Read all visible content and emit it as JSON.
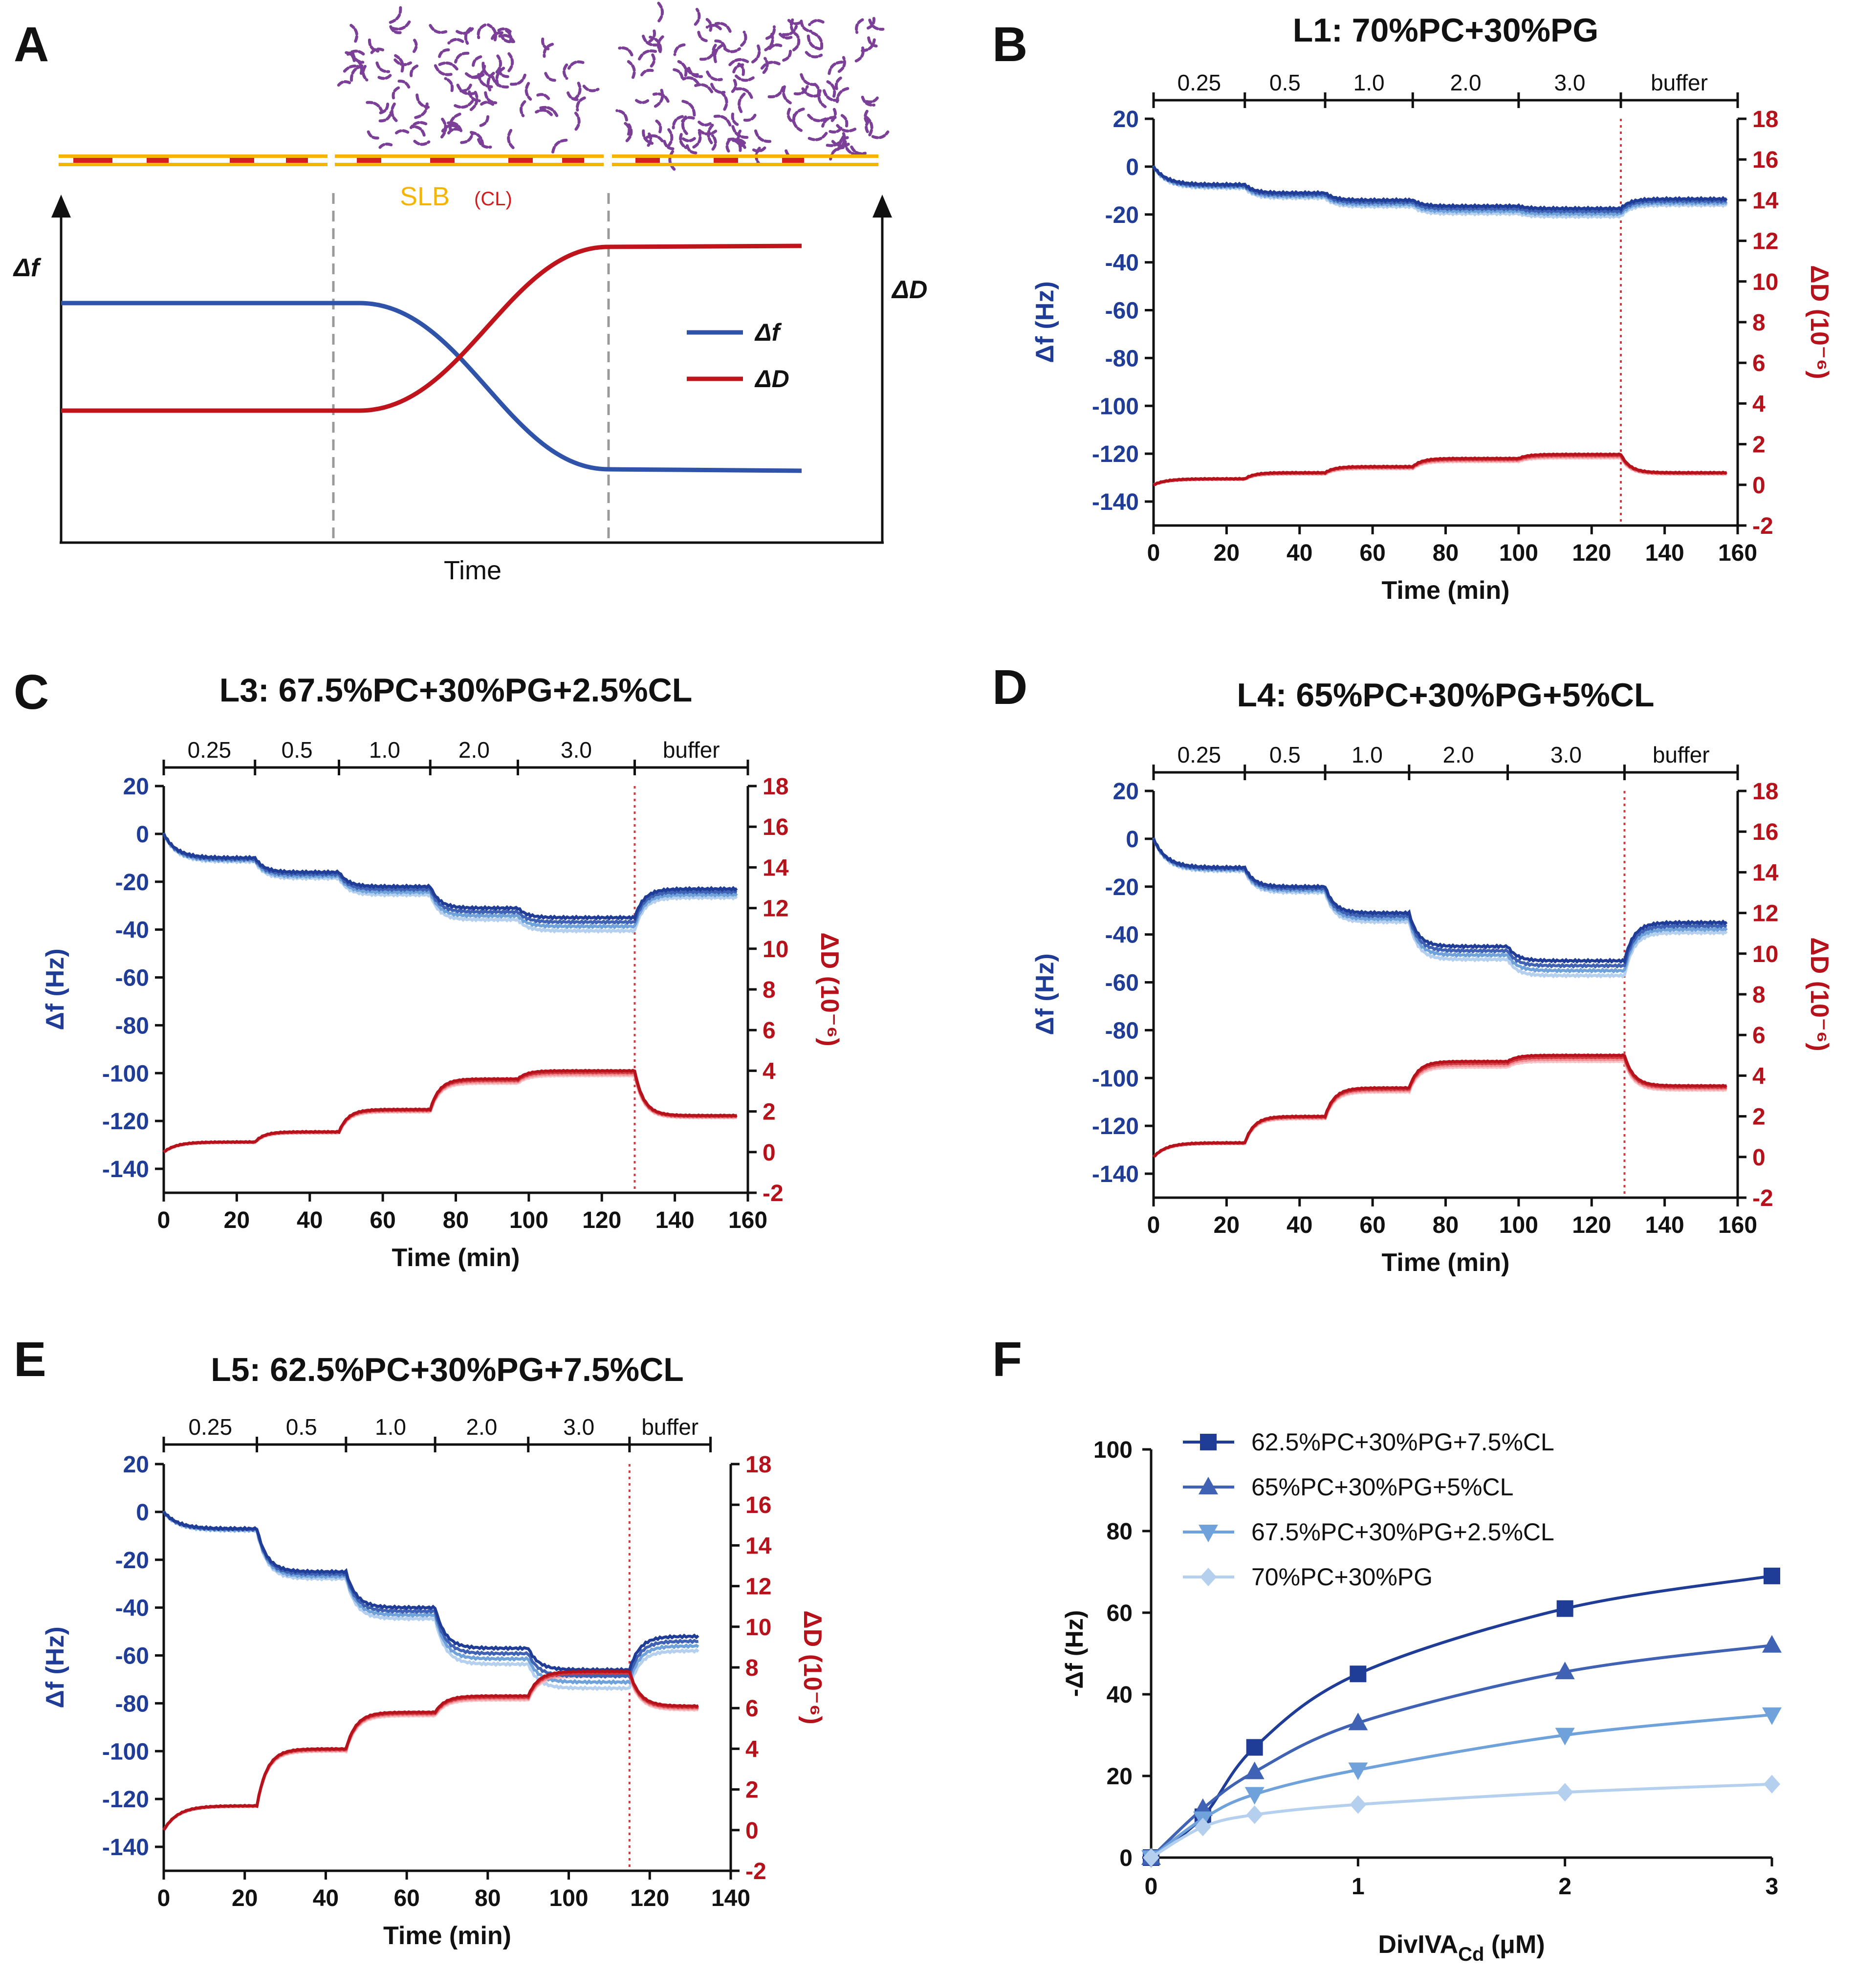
{
  "colors": {
    "blue_dark": "#1f3c96",
    "blue_mid": "#3f62b4",
    "blue_light": "#6fa1da",
    "blue_pale": "#b4d0ee",
    "red_dark": "#b5121b",
    "red_mid": "#d23a42",
    "red_light": "#ef8d93",
    "red_pale": "#f7c3c6",
    "purple": "#7b3f98",
    "gold": "#f5b400",
    "grid_dash": "#9a9a9a",
    "axis": "#111111"
  },
  "panel_labels": [
    "A",
    "B",
    "C",
    "D",
    "E",
    "F"
  ],
  "schematic": {
    "slb_label": "SLB",
    "cl_label": "(CL)",
    "time_label": "Time",
    "df_axis": "Δf",
    "dD_axis": "ΔD",
    "legend": [
      "Δf",
      "ΔD"
    ]
  },
  "qcmd_common": {
    "xlabel": "Time (min)",
    "ylabel_left": "Δf (Hz)",
    "ylabel_right": "ΔD (10⁻⁶)",
    "left_ticks": [
      20,
      0,
      -20,
      -40,
      -60,
      -80,
      -100,
      -120,
      -140
    ],
    "right_ticks": [
      18,
      16,
      14,
      12,
      10,
      8,
      6,
      4,
      2,
      0,
      -2
    ]
  },
  "chart_data": [
    {
      "panel": "B",
      "type": "line",
      "title": "L1: 70%PC+30%PG",
      "xlim": [
        0,
        160
      ],
      "xticks": [
        0,
        20,
        40,
        60,
        80,
        100,
        120,
        140,
        160
      ],
      "ylim_left": [
        -150,
        20
      ],
      "ylim_right": [
        -2,
        18
      ],
      "injection_times": [
        0,
        25,
        47,
        71,
        100,
        128,
        160
      ],
      "injection_labels": [
        "0.25",
        "0.5",
        "1.0",
        "2.0",
        "3.0",
        "buffer"
      ],
      "buffer_time": 128,
      "df_levels": [
        -7.5,
        -11,
        -14,
        -16.5,
        -17.5,
        -13.5
      ],
      "dD_levels": [
        0.3,
        0.6,
        0.9,
        1.3,
        1.5,
        0.6
      ],
      "series_spread_df": 1.5,
      "series_spread_dD": 0.3
    },
    {
      "panel": "C",
      "type": "line",
      "title": "L3: 67.5%PC+30%PG+2.5%CL",
      "xlim": [
        0,
        160
      ],
      "xticks": [
        0,
        20,
        40,
        60,
        80,
        100,
        120,
        140,
        160
      ],
      "ylim_left": [
        -150,
        20
      ],
      "ylim_right": [
        -2,
        18
      ],
      "injection_times": [
        0,
        25,
        48,
        73,
        97,
        129,
        160
      ],
      "injection_labels": [
        "0.25",
        "0.5",
        "1.0",
        "2.0",
        "3.0",
        "buffer"
      ],
      "buffer_time": 129,
      "df_levels": [
        -10,
        -16,
        -22,
        -31,
        -35,
        -23
      ],
      "dD_levels": [
        0.5,
        1.0,
        2.1,
        3.6,
        4.0,
        1.8
      ],
      "series_spread_df": 2.5,
      "series_spread_dD": 0.4
    },
    {
      "panel": "D",
      "type": "line",
      "title": "L4: 65%PC+30%PG+5%CL",
      "xlim": [
        0,
        160
      ],
      "xticks": [
        0,
        20,
        40,
        60,
        80,
        100,
        120,
        140,
        160
      ],
      "ylim_left": [
        -150,
        20
      ],
      "ylim_right": [
        -2,
        18
      ],
      "injection_times": [
        0,
        25,
        47,
        70,
        97,
        129,
        160
      ],
      "injection_labels": [
        "0.25",
        "0.5",
        "1.0",
        "2.0",
        "3.0",
        "buffer"
      ],
      "buffer_time": 129,
      "df_levels": [
        -12,
        -20,
        -31,
        -45,
        -51,
        -35
      ],
      "dD_levels": [
        0.7,
        2.0,
        3.4,
        4.7,
        5.0,
        3.5
      ],
      "series_spread_df": 2.8,
      "series_spread_dD": 0.5
    },
    {
      "panel": "E",
      "type": "line",
      "title": "L5: 62.5%PC+30%PG+7.5%CL",
      "xlim": [
        0,
        140
      ],
      "xticks": [
        0,
        20,
        40,
        60,
        80,
        100,
        120,
        140
      ],
      "ylim_left": [
        -150,
        20
      ],
      "ylim_right": [
        -2,
        18
      ],
      "injection_times": [
        0,
        23,
        45,
        67,
        90,
        115,
        135
      ],
      "injection_labels": [
        "0.25",
        "0.5",
        "1.0",
        "2.0",
        "3.0",
        "buffer"
      ],
      "buffer_time": 115,
      "df_levels": [
        -7,
        -25,
        -40,
        -57,
        -66,
        -52
      ],
      "dD_levels": [
        1.2,
        4.0,
        5.8,
        6.6,
        7.8,
        6.1
      ],
      "series_spread_df": 3.5,
      "series_spread_dD": 0.4
    },
    {
      "panel": "F",
      "type": "scatter",
      "xlabel_main": "DivIVA",
      "xlabel_sub": "Cd",
      "xlabel_unit": " (μM)",
      "ylabel": "-Δf (Hz)",
      "xlim": [
        0,
        3
      ],
      "ylim": [
        0,
        100
      ],
      "xticks": [
        0,
        1,
        2,
        3
      ],
      "yticks": [
        0,
        20,
        40,
        60,
        80,
        100
      ],
      "series": [
        {
          "name": "62.5%PC+30%PG+7.5%CL",
          "marker": "square",
          "x": [
            0,
            0.25,
            0.5,
            1,
            2,
            3
          ],
          "y": [
            0,
            10,
            27,
            45,
            61,
            69
          ]
        },
        {
          "name": "65%PC+30%PG+5%CL",
          "marker": "triangle-up",
          "x": [
            0,
            0.25,
            0.5,
            1,
            2,
            3
          ],
          "y": [
            0,
            12,
            21,
            33,
            45.5,
            52
          ]
        },
        {
          "name": "67.5%PC+30%PG+2.5%CL",
          "marker": "triangle-down",
          "x": [
            0,
            0.25,
            0.5,
            1,
            2,
            3
          ],
          "y": [
            0,
            9.5,
            15.5,
            21.5,
            30,
            35
          ]
        },
        {
          "name": "70%PC+30%PG",
          "marker": "diamond",
          "x": [
            0,
            0.25,
            0.5,
            1,
            2,
            3
          ],
          "y": [
            0,
            7.5,
            10.5,
            13,
            16,
            18
          ]
        }
      ]
    }
  ]
}
